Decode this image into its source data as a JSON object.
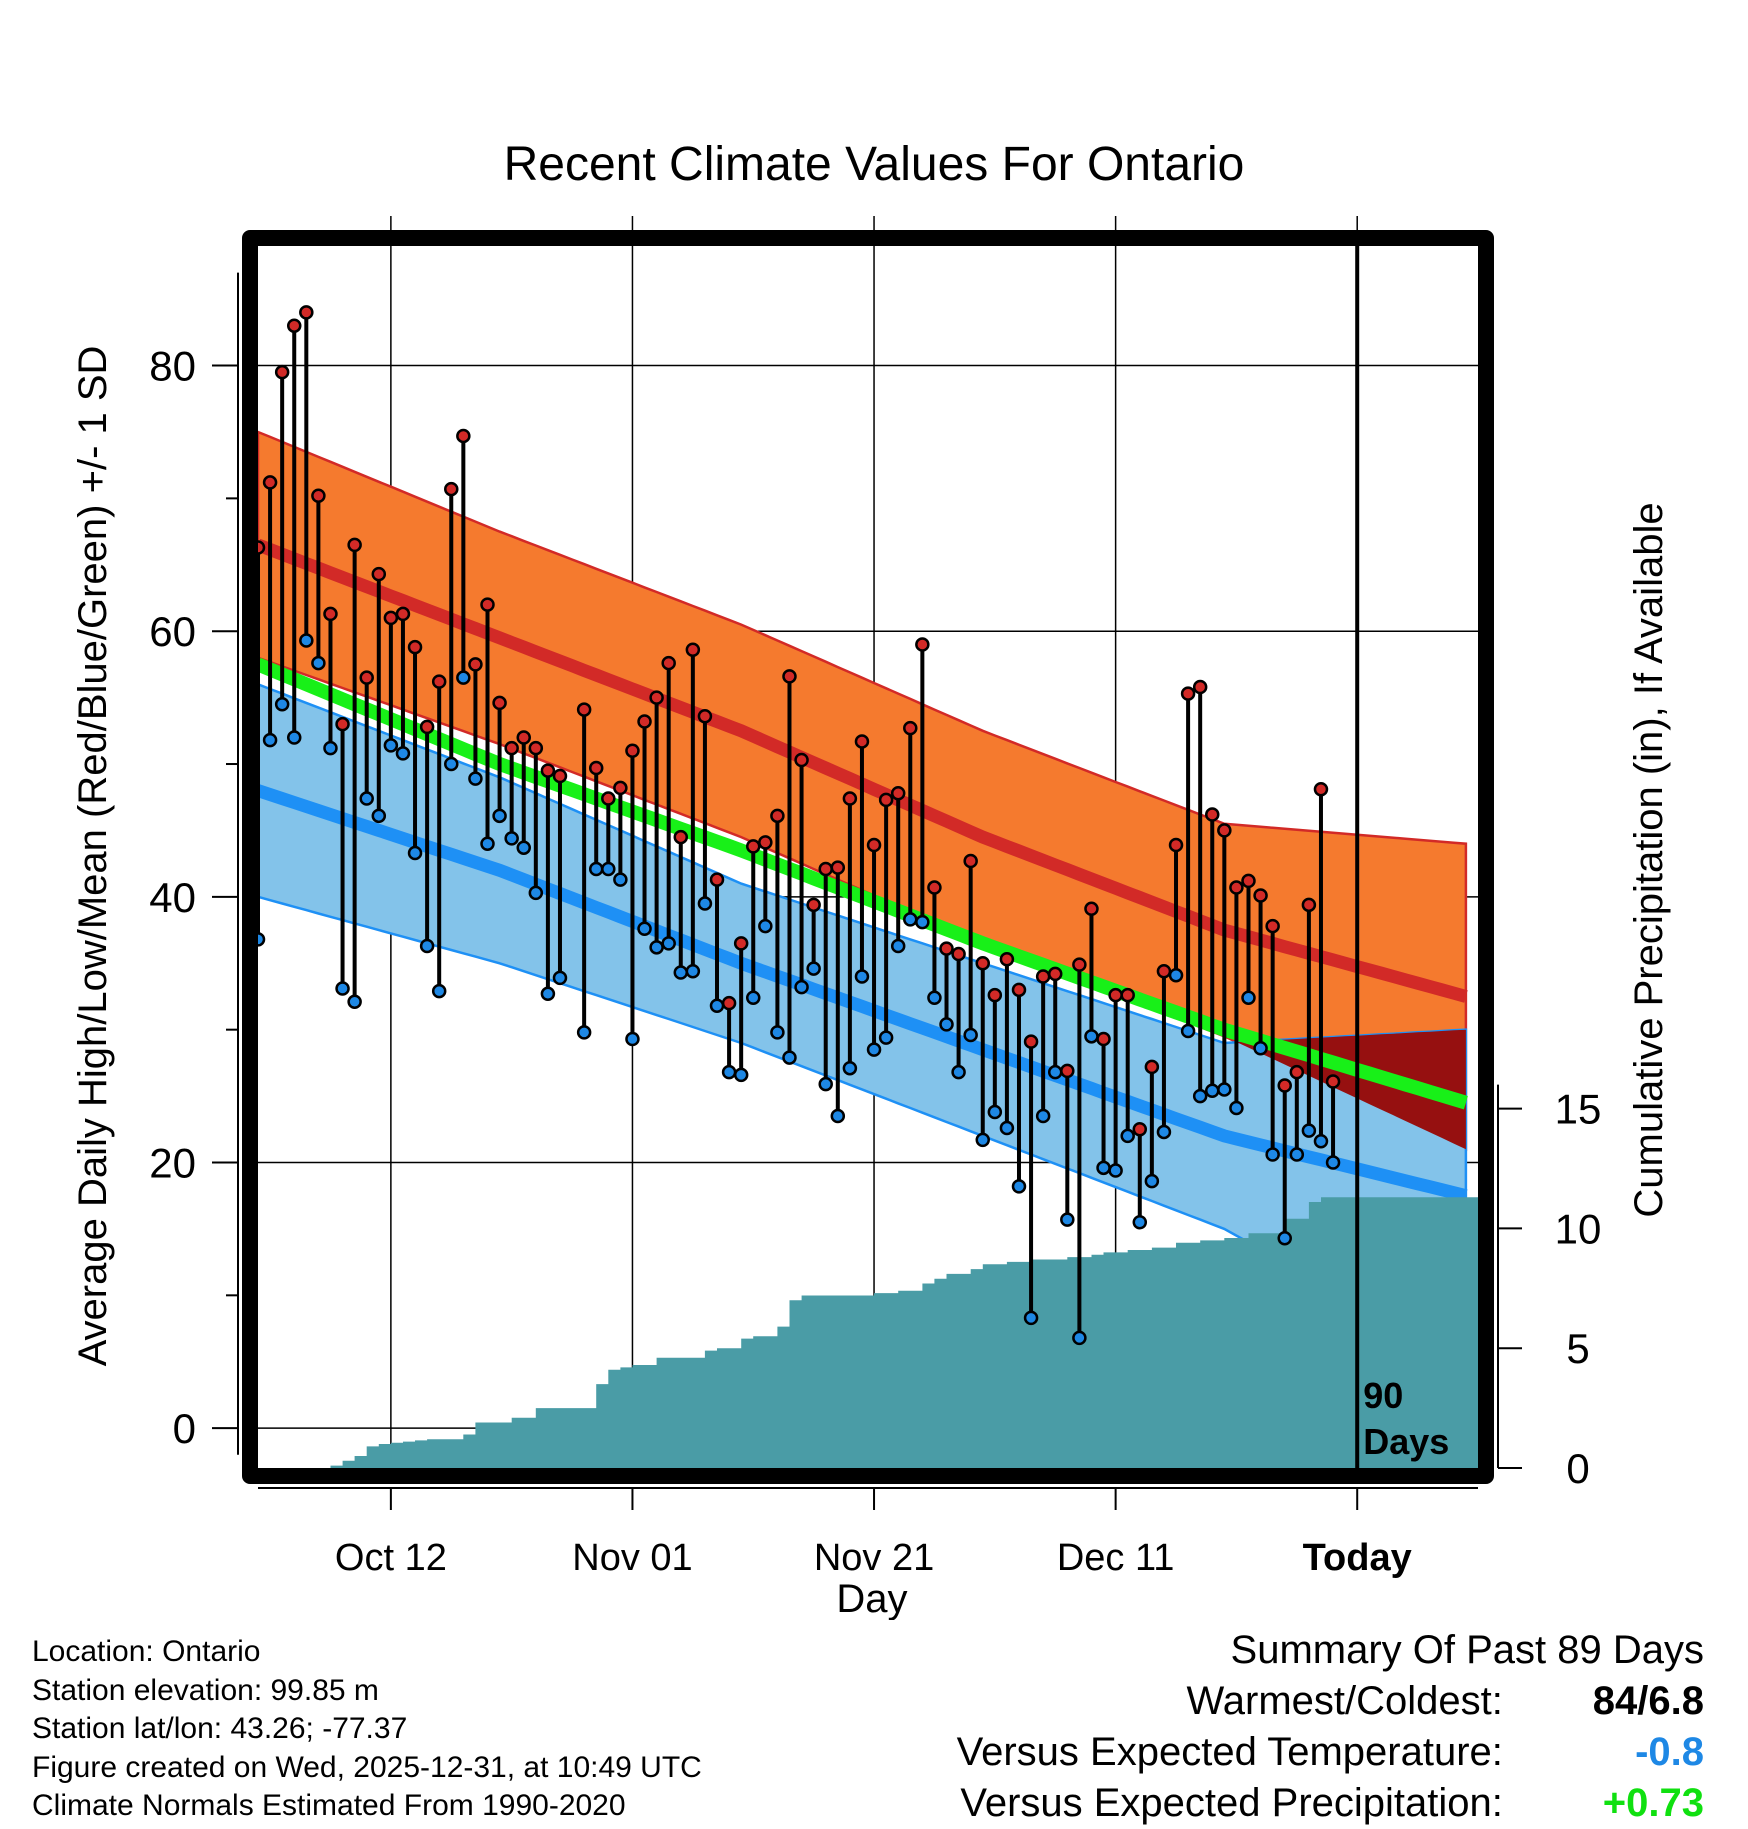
{
  "chart_data": {
    "type": "line",
    "title": "Recent Climate Values For Ontario",
    "xlabel": "Day",
    "ylabel": "Average Daily High/Low/Mean (Red/Blue/Green) +/- 1 SD",
    "y2label": "Cumulative Precipitation (in), If Available",
    "x_ticks": [
      {
        "day": 11,
        "label": "Oct 12"
      },
      {
        "day": 31,
        "label": "Nov 01"
      },
      {
        "day": 51,
        "label": "Nov 21"
      },
      {
        "day": 71,
        "label": "Dec 11"
      },
      {
        "day": 91,
        "label": "Today"
      }
    ],
    "xlim": [
      0,
      101
    ],
    "ylim": [
      -3,
      89
    ],
    "y_ticks": [
      0,
      20,
      40,
      60,
      80
    ],
    "y2lim": [
      0,
      51
    ],
    "y2_ticks": [
      0,
      5,
      10,
      15
    ],
    "today_day": 91,
    "today_annotation": [
      "90",
      "Days"
    ],
    "colors": {
      "high_sd_band": "#f57a2e",
      "high_mean_line": "#d22a27",
      "low_sd_band": "#83c3ea",
      "low_mean_line": "#1e90f5",
      "mean_line": "#18f018",
      "overlap_band": "#961010",
      "precip_fill": "#4a9ca6",
      "high_marker": "#d22a27",
      "low_marker": "#1e88e5"
    },
    "normals": {
      "days": [
        0,
        20,
        40,
        60,
        80,
        100
      ],
      "high_mean": [
        66.5,
        59.5,
        52.5,
        44.5,
        37.5,
        32.5
      ],
      "high_sd": [
        8.5,
        8.0,
        8.0,
        8.0,
        8.0,
        11.5
      ],
      "low_mean": [
        48.0,
        42.0,
        35.0,
        28.5,
        22.0,
        17.5
      ],
      "low_sd": [
        8.0,
        7.0,
        6.0,
        6.5,
        7.0,
        12.5
      ],
      "mean": [
        57.5,
        50.0,
        43.5,
        36.5,
        30.0,
        24.5
      ]
    },
    "observed": {
      "days": [
        0,
        1,
        2,
        3,
        4,
        5,
        6,
        7,
        8,
        9,
        10,
        11,
        12,
        13,
        14,
        15,
        16,
        17,
        18,
        19,
        20,
        21,
        22,
        23,
        24,
        25,
        26,
        27,
        28,
        29,
        30,
        31,
        32,
        33,
        34,
        35,
        36,
        37,
        38,
        39,
        40,
        41,
        42,
        43,
        44,
        45,
        46,
        47,
        48,
        49,
        50,
        51,
        52,
        53,
        54,
        55,
        56,
        57,
        58,
        59,
        60,
        61,
        62,
        63,
        64,
        65,
        66,
        67,
        68,
        69,
        70,
        71,
        72,
        73,
        74,
        75,
        76,
        77,
        78,
        79,
        80,
        81,
        82,
        83,
        84,
        85,
        86,
        87,
        88,
        89,
        90
      ],
      "high": [
        66.3,
        71.2,
        79.5,
        83.0,
        84.0,
        70.2,
        61.3,
        53.0,
        66.5,
        56.5,
        64.3,
        61.0,
        61.3,
        58.8,
        52.8,
        56.2,
        70.7,
        74.7,
        57.5,
        62.0,
        54.6,
        51.2,
        52.0,
        51.2,
        49.5,
        49.1,
        null,
        54.1,
        49.7,
        47.4,
        48.2,
        51.0,
        53.2,
        55.0,
        57.6,
        44.5,
        58.6,
        53.6,
        41.3,
        32.0,
        36.5,
        43.8,
        44.1,
        46.1,
        56.6,
        50.3,
        39.4,
        42.1,
        42.2,
        47.4,
        51.7,
        43.9,
        47.3,
        47.8,
        52.7,
        59.0,
        40.7,
        36.1,
        35.7,
        42.7,
        35.0,
        32.6,
        35.3,
        33.0,
        29.1,
        34.0,
        34.2,
        26.9,
        34.9,
        39.1,
        29.3,
        32.6,
        32.6,
        22.5,
        27.2,
        34.4,
        43.9,
        55.3,
        55.8,
        46.2,
        45.0,
        40.7,
        41.2,
        40.1,
        37.8,
        25.8,
        26.8,
        39.4,
        48.1,
        26.1,
        null
      ],
      "low": [
        36.8,
        51.8,
        54.5,
        52.0,
        59.3,
        57.6,
        51.2,
        33.1,
        32.1,
        47.4,
        46.1,
        51.4,
        50.8,
        43.3,
        36.3,
        32.9,
        50.0,
        56.5,
        48.9,
        44.0,
        46.1,
        44.4,
        43.7,
        40.3,
        32.7,
        33.9,
        null,
        29.8,
        42.1,
        42.1,
        41.3,
        29.3,
        37.6,
        36.2,
        36.5,
        34.3,
        34.4,
        39.5,
        31.8,
        26.8,
        26.6,
        32.4,
        37.8,
        29.8,
        27.9,
        33.2,
        34.6,
        25.9,
        23.5,
        27.1,
        34.0,
        28.5,
        29.4,
        36.3,
        38.3,
        38.1,
        32.4,
        30.4,
        26.8,
        29.6,
        21.7,
        23.8,
        22.6,
        18.2,
        8.3,
        23.5,
        26.8,
        15.7,
        6.8,
        29.5,
        19.6,
        19.4,
        22.0,
        15.5,
        18.6,
        22.3,
        34.1,
        29.9,
        25.0,
        25.4,
        25.5,
        24.1,
        32.4,
        28.6,
        20.6,
        14.3,
        20.6,
        22.4,
        21.6,
        20.0,
        null
      ],
      "precip_cumulative": [
        0,
        0,
        0,
        0,
        0,
        0,
        0.1,
        0.3,
        0.5,
        0.9,
        1.0,
        1.05,
        1.1,
        1.15,
        1.2,
        1.2,
        1.2,
        1.4,
        1.9,
        1.9,
        1.9,
        2.1,
        2.1,
        2.5,
        2.5,
        2.5,
        2.5,
        2.5,
        3.5,
        4.1,
        4.2,
        4.3,
        4.3,
        4.6,
        4.6,
        4.6,
        4.6,
        4.9,
        5.0,
        5.0,
        5.4,
        5.5,
        5.5,
        5.9,
        7.0,
        7.2,
        7.2,
        7.2,
        7.2,
        7.2,
        7.2,
        7.3,
        7.3,
        7.4,
        7.4,
        7.7,
        7.9,
        8.1,
        8.1,
        8.3,
        8.5,
        8.5,
        8.6,
        8.6,
        8.7,
        8.7,
        8.7,
        8.8,
        8.8,
        8.9,
        9.0,
        9.0,
        9.1,
        9.1,
        9.2,
        9.2,
        9.4,
        9.4,
        9.5,
        9.5,
        9.6,
        9.6,
        9.8,
        9.8,
        9.8,
        10.4,
        10.4,
        11.1,
        11.3,
        11.3,
        11.3
      ]
    }
  },
  "info": {
    "location": "Location: Ontario",
    "elevation": "Station elevation: 99.85 m",
    "latlon": "Station lat/lon: 43.26; -77.37",
    "created": "Figure created on Wed, 2025-12-31, at 10:49 UTC",
    "normals": "Climate Normals Estimated From 1990-2020"
  },
  "summary": {
    "title": "Summary Of Past 89 Days",
    "warmest_label": "Warmest/Coldest:",
    "warmest_value": "84/6.8",
    "temp_label": "Versus Expected Temperature:",
    "temp_value": "-0.8",
    "temp_color": "#1e88e5",
    "precip_label": "Versus Expected Precipitation:",
    "precip_value": "+0.73",
    "precip_color": "#10e010"
  }
}
